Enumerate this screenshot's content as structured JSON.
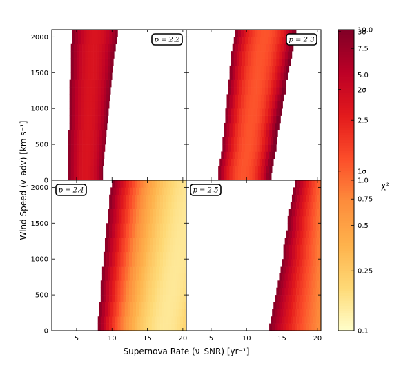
{
  "chart_data": {
    "type": "heatmap",
    "xlabel": "Supernova Rate (ν_SNR) [yr⁻¹]",
    "ylabel": "Wind Speed (v_adv) [km s⁻¹]",
    "xlim": [
      1.5,
      20.5
    ],
    "ylim": [
      0,
      2100
    ],
    "xticks": [
      5,
      10,
      15,
      20
    ],
    "yticks": [
      0,
      500,
      1000,
      1500,
      2000
    ],
    "colorbar": {
      "label": "χ²",
      "scale": "log",
      "range": [
        0.1,
        10.0
      ],
      "ticks": [
        {
          "value": 10.0,
          "label": "10.0"
        },
        {
          "value": 7.5,
          "label": "7.5"
        },
        {
          "value": 5.0,
          "label": "5.0"
        },
        {
          "value": 2.5,
          "label": "2.5"
        },
        {
          "value": 1.0,
          "label": "1.0"
        },
        {
          "value": 0.75,
          "label": "0.75"
        },
        {
          "value": 0.5,
          "label": "0.5"
        },
        {
          "value": 0.25,
          "label": "0.25"
        },
        {
          "value": 0.1,
          "label": "0.1"
        }
      ],
      "sigma_marks": [
        {
          "value": 9.7,
          "label": "3σ"
        },
        {
          "value": 4.0,
          "label": "2σ"
        },
        {
          "value": 1.15,
          "label": "1σ"
        }
      ],
      "colormap": [
        "#ffffcc",
        "#fed976",
        "#feb24c",
        "#fd8d3c",
        "#fc4e2a",
        "#e31a1c",
        "#bd0026",
        "#800026"
      ]
    },
    "panels": [
      {
        "label": "p = 2.2",
        "rows": [
          {
            "y": 0,
            "x_start": 3.8,
            "x_end": 8.7,
            "x_min": 6.3,
            "chi_min": 3.2
          },
          {
            "y": 100,
            "x_start": 3.8,
            "x_end": 8.7,
            "x_min": 6.3,
            "chi_min": 3.2
          },
          {
            "y": 200,
            "x_start": 3.8,
            "x_end": 8.8,
            "x_min": 6.35,
            "chi_min": 3.2
          },
          {
            "y": 300,
            "x_start": 3.8,
            "x_end": 8.9,
            "x_min": 6.4,
            "chi_min": 3.2
          },
          {
            "y": 400,
            "x_start": 3.8,
            "x_end": 9.0,
            "x_min": 6.45,
            "chi_min": 3.2
          },
          {
            "y": 500,
            "x_start": 3.8,
            "x_end": 9.1,
            "x_min": 6.5,
            "chi_min": 3.2
          },
          {
            "y": 600,
            "x_start": 3.8,
            "x_end": 9.2,
            "x_min": 6.55,
            "chi_min": 3.2
          },
          {
            "y": 700,
            "x_start": 4.0,
            "x_end": 9.3,
            "x_min": 6.65,
            "chi_min": 3.2
          },
          {
            "y": 800,
            "x_start": 4.0,
            "x_end": 9.4,
            "x_min": 6.7,
            "chi_min": 3.2
          },
          {
            "y": 900,
            "x_start": 4.0,
            "x_end": 9.5,
            "x_min": 6.75,
            "chi_min": 3.2
          },
          {
            "y": 1000,
            "x_start": 4.0,
            "x_end": 9.6,
            "x_min": 6.8,
            "chi_min": 3.2
          },
          {
            "y": 1100,
            "x_start": 4.0,
            "x_end": 9.7,
            "x_min": 6.85,
            "chi_min": 3.2
          },
          {
            "y": 1200,
            "x_start": 4.0,
            "x_end": 9.8,
            "x_min": 6.9,
            "chi_min": 3.2
          },
          {
            "y": 1300,
            "x_start": 4.0,
            "x_end": 9.9,
            "x_min": 6.95,
            "chi_min": 3.2
          },
          {
            "y": 1400,
            "x_start": 4.2,
            "x_end": 10.0,
            "x_min": 7.1,
            "chi_min": 3.2
          },
          {
            "y": 1500,
            "x_start": 4.2,
            "x_end": 10.1,
            "x_min": 7.15,
            "chi_min": 3.2
          },
          {
            "y": 1600,
            "x_start": 4.2,
            "x_end": 10.2,
            "x_min": 7.2,
            "chi_min": 3.2
          },
          {
            "y": 1700,
            "x_start": 4.2,
            "x_end": 10.3,
            "x_min": 7.25,
            "chi_min": 3.2
          },
          {
            "y": 1800,
            "x_start": 4.2,
            "x_end": 10.5,
            "x_min": 7.35,
            "chi_min": 3.2
          },
          {
            "y": 1900,
            "x_start": 4.4,
            "x_end": 10.7,
            "x_min": 7.55,
            "chi_min": 3.2
          },
          {
            "y": 2000,
            "x_start": 4.4,
            "x_end": 10.8,
            "x_min": 7.6,
            "chi_min": 3.2
          }
        ]
      },
      {
        "label": "p = 2.3",
        "rows": [
          {
            "y": 0,
            "x_start": 6.0,
            "x_end": 13.5,
            "x_min": 9.6,
            "chi_min": 1.3
          },
          {
            "y": 100,
            "x_start": 6.0,
            "x_end": 13.6,
            "x_min": 9.65,
            "chi_min": 1.3
          },
          {
            "y": 200,
            "x_start": 6.2,
            "x_end": 13.8,
            "x_min": 9.8,
            "chi_min": 1.3
          },
          {
            "y": 300,
            "x_start": 6.4,
            "x_end": 14.0,
            "x_min": 10.0,
            "chi_min": 1.3
          },
          {
            "y": 400,
            "x_start": 6.6,
            "x_end": 14.2,
            "x_min": 10.2,
            "chi_min": 1.3
          },
          {
            "y": 500,
            "x_start": 6.6,
            "x_end": 14.3,
            "x_min": 10.3,
            "chi_min": 1.3
          },
          {
            "y": 600,
            "x_start": 6.8,
            "x_end": 14.4,
            "x_min": 10.4,
            "chi_min": 1.3
          },
          {
            "y": 700,
            "x_start": 6.8,
            "x_end": 14.6,
            "x_min": 10.5,
            "chi_min": 1.3
          },
          {
            "y": 800,
            "x_start": 7.0,
            "x_end": 14.8,
            "x_min": 10.7,
            "chi_min": 1.3
          },
          {
            "y": 900,
            "x_start": 7.0,
            "x_end": 15.0,
            "x_min": 10.8,
            "chi_min": 1.3
          },
          {
            "y": 1000,
            "x_start": 7.2,
            "x_end": 15.1,
            "x_min": 11.0,
            "chi_min": 1.3
          },
          {
            "y": 1100,
            "x_start": 7.2,
            "x_end": 15.3,
            "x_min": 11.1,
            "chi_min": 1.3
          },
          {
            "y": 1200,
            "x_start": 7.4,
            "x_end": 15.5,
            "x_min": 11.3,
            "chi_min": 1.3
          },
          {
            "y": 1300,
            "x_start": 7.4,
            "x_end": 15.6,
            "x_min": 11.4,
            "chi_min": 1.3
          },
          {
            "y": 1400,
            "x_start": 7.6,
            "x_end": 15.8,
            "x_min": 11.6,
            "chi_min": 1.3
          },
          {
            "y": 1500,
            "x_start": 7.6,
            "x_end": 16.0,
            "x_min": 11.7,
            "chi_min": 1.3
          },
          {
            "y": 1600,
            "x_start": 7.8,
            "x_end": 16.2,
            "x_min": 11.9,
            "chi_min": 1.3
          },
          {
            "y": 1700,
            "x_start": 7.8,
            "x_end": 16.4,
            "x_min": 12.0,
            "chi_min": 1.3
          },
          {
            "y": 1800,
            "x_start": 8.0,
            "x_end": 16.6,
            "x_min": 12.2,
            "chi_min": 1.3
          },
          {
            "y": 1900,
            "x_start": 8.2,
            "x_end": 16.8,
            "x_min": 12.4,
            "chi_min": 1.3
          },
          {
            "y": 2000,
            "x_start": 8.4,
            "x_end": 17.0,
            "x_min": 12.6,
            "chi_min": 1.3
          }
        ]
      },
      {
        "label": "p = 2.4",
        "rows": [
          {
            "y": 0,
            "x_start": 8.0,
            "x_end": 20.5,
            "x_min": 17.6,
            "chi_min": 0.15
          },
          {
            "y": 100,
            "x_start": 8.0,
            "x_end": 20.5,
            "x_min": 17.7,
            "chi_min": 0.15
          },
          {
            "y": 200,
            "x_start": 8.2,
            "x_end": 20.5,
            "x_min": 17.9,
            "chi_min": 0.15
          },
          {
            "y": 300,
            "x_start": 8.2,
            "x_end": 20.5,
            "x_min": 18.1,
            "chi_min": 0.15
          },
          {
            "y": 400,
            "x_start": 8.4,
            "x_end": 20.5,
            "x_min": 18.3,
            "chi_min": 0.15
          },
          {
            "y": 500,
            "x_start": 8.4,
            "x_end": 20.5,
            "x_min": 18.5,
            "chi_min": 0.15
          },
          {
            "y": 600,
            "x_start": 8.4,
            "x_end": 20.5,
            "x_min": 18.7,
            "chi_min": 0.15
          },
          {
            "y": 700,
            "x_start": 8.6,
            "x_end": 20.5,
            "x_min": 18.9,
            "chi_min": 0.15
          },
          {
            "y": 800,
            "x_start": 8.6,
            "x_end": 20.5,
            "x_min": 19.1,
            "chi_min": 0.15
          },
          {
            "y": 900,
            "x_start": 8.8,
            "x_end": 20.5,
            "x_min": 19.3,
            "chi_min": 0.15
          },
          {
            "y": 1000,
            "x_start": 8.8,
            "x_end": 20.5,
            "x_min": 19.5,
            "chi_min": 0.15
          },
          {
            "y": 1100,
            "x_start": 9.0,
            "x_end": 20.5,
            "x_min": 19.7,
            "chi_min": 0.15
          },
          {
            "y": 1200,
            "x_start": 9.0,
            "x_end": 20.5,
            "x_min": 19.9,
            "chi_min": 0.15
          },
          {
            "y": 1300,
            "x_start": 9.2,
            "x_end": 20.5,
            "x_min": 20.1,
            "chi_min": 0.15
          },
          {
            "y": 1400,
            "x_start": 9.2,
            "x_end": 20.5,
            "x_min": 20.3,
            "chi_min": 0.15
          },
          {
            "y": 1500,
            "x_start": 9.4,
            "x_end": 20.5,
            "x_min": 20.5,
            "chi_min": 0.15
          },
          {
            "y": 1600,
            "x_start": 9.4,
            "x_end": 20.5,
            "x_min": 20.7,
            "chi_min": 0.15
          },
          {
            "y": 1700,
            "x_start": 9.6,
            "x_end": 20.5,
            "x_min": 20.9,
            "chi_min": 0.15
          },
          {
            "y": 1800,
            "x_start": 9.6,
            "x_end": 20.5,
            "x_min": 21.1,
            "chi_min": 0.15
          },
          {
            "y": 1900,
            "x_start": 9.8,
            "x_end": 20.5,
            "x_min": 21.3,
            "chi_min": 0.15
          },
          {
            "y": 2000,
            "x_start": 10.0,
            "x_end": 20.5,
            "x_min": 21.5,
            "chi_min": 0.15
          }
        ]
      },
      {
        "label": "p = 2.5",
        "rows": [
          {
            "y": 0,
            "x_start": 13.2,
            "x_end": 20.5,
            "x_min": 24.0,
            "chi_min": 0.5
          },
          {
            "y": 100,
            "x_start": 13.4,
            "x_end": 20.5,
            "x_min": 24.0,
            "chi_min": 0.5
          },
          {
            "y": 200,
            "x_start": 13.6,
            "x_end": 20.5,
            "x_min": 24.0,
            "chi_min": 0.5
          },
          {
            "y": 300,
            "x_start": 13.8,
            "x_end": 20.5,
            "x_min": 24.0,
            "chi_min": 0.5
          },
          {
            "y": 400,
            "x_start": 14.0,
            "x_end": 20.5,
            "x_min": 24.0,
            "chi_min": 0.5
          },
          {
            "y": 500,
            "x_start": 14.2,
            "x_end": 20.5,
            "x_min": 24.0,
            "chi_min": 0.5
          },
          {
            "y": 600,
            "x_start": 14.4,
            "x_end": 20.5,
            "x_min": 24.0,
            "chi_min": 0.5
          },
          {
            "y": 700,
            "x_start": 14.6,
            "x_end": 20.5,
            "x_min": 24.0,
            "chi_min": 0.5
          },
          {
            "y": 800,
            "x_start": 14.8,
            "x_end": 20.5,
            "x_min": 24.0,
            "chi_min": 0.5
          },
          {
            "y": 900,
            "x_start": 15.0,
            "x_end": 20.5,
            "x_min": 24.0,
            "chi_min": 0.5
          },
          {
            "y": 1000,
            "x_start": 15.2,
            "x_end": 20.5,
            "x_min": 24.0,
            "chi_min": 0.5
          },
          {
            "y": 1100,
            "x_start": 15.2,
            "x_end": 20.5,
            "x_min": 24.0,
            "chi_min": 0.5
          },
          {
            "y": 1200,
            "x_start": 15.4,
            "x_end": 20.5,
            "x_min": 24.0,
            "chi_min": 0.5
          },
          {
            "y": 1300,
            "x_start": 15.6,
            "x_end": 20.5,
            "x_min": 24.0,
            "chi_min": 0.5
          },
          {
            "y": 1400,
            "x_start": 15.8,
            "x_end": 20.5,
            "x_min": 24.0,
            "chi_min": 0.5
          },
          {
            "y": 1500,
            "x_start": 15.8,
            "x_end": 20.5,
            "x_min": 24.0,
            "chi_min": 0.5
          },
          {
            "y": 1600,
            "x_start": 16.0,
            "x_end": 20.5,
            "x_min": 24.0,
            "chi_min": 0.5
          },
          {
            "y": 1700,
            "x_start": 16.2,
            "x_end": 20.5,
            "x_min": 24.0,
            "chi_min": 0.5
          },
          {
            "y": 1800,
            "x_start": 16.4,
            "x_end": 20.5,
            "x_min": 24.0,
            "chi_min": 0.5
          },
          {
            "y": 1900,
            "x_start": 16.6,
            "x_end": 20.5,
            "x_min": 24.0,
            "chi_min": 0.5
          },
          {
            "y": 2000,
            "x_start": 16.8,
            "x_end": 20.5,
            "x_min": 24.0,
            "chi_min": 0.5
          }
        ]
      }
    ]
  }
}
